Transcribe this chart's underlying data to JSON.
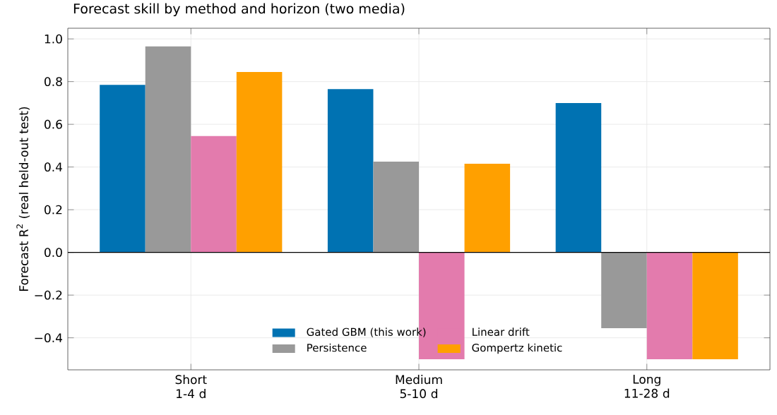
{
  "chart_data": {
    "type": "bar",
    "title": "Forecast skill by method and horizon (two media)",
    "ylabel": "Forecast R$^{2}$ (real held-out test)",
    "categories": [
      "Short 1-4 d",
      "Medium 5-10 d",
      "Long 11-28 d"
    ],
    "series": [
      {
        "name": "Gated GBM (this work)",
        "color": "#0072b2",
        "values": [
          0.785,
          0.765,
          0.7
        ]
      },
      {
        "name": "Persistence",
        "color": "#999999",
        "values": [
          0.965,
          0.425,
          -0.355
        ]
      },
      {
        "name": "Linear drift",
        "color": "#e37bad",
        "values": [
          0.545,
          -0.5,
          -0.5
        ]
      },
      {
        "name": "Gompertz kinetic",
        "color": "#ffa000",
        "values": [
          0.845,
          0.415,
          -0.5
        ]
      }
    ],
    "ylim": [
      -0.55,
      1.05
    ],
    "yticks": [
      {
        "value": -0.4,
        "label": "−0.4"
      },
      {
        "value": -0.2,
        "label": "−0.2"
      },
      {
        "value": 0,
        "label": "0.0"
      },
      {
        "value": 0.2,
        "label": "0.2"
      },
      {
        "value": 0.4,
        "label": "0.4"
      },
      {
        "value": 0.6,
        "label": "0.6"
      },
      {
        "value": 0.8,
        "label": "0.8"
      },
      {
        "value": 1.0,
        "label": "1.0"
      }
    ],
    "ref_lines": [
      {
        "axis": "y",
        "value": 0,
        "color": "#000000"
      }
    ],
    "grid": true,
    "legend": "bottom"
  }
}
